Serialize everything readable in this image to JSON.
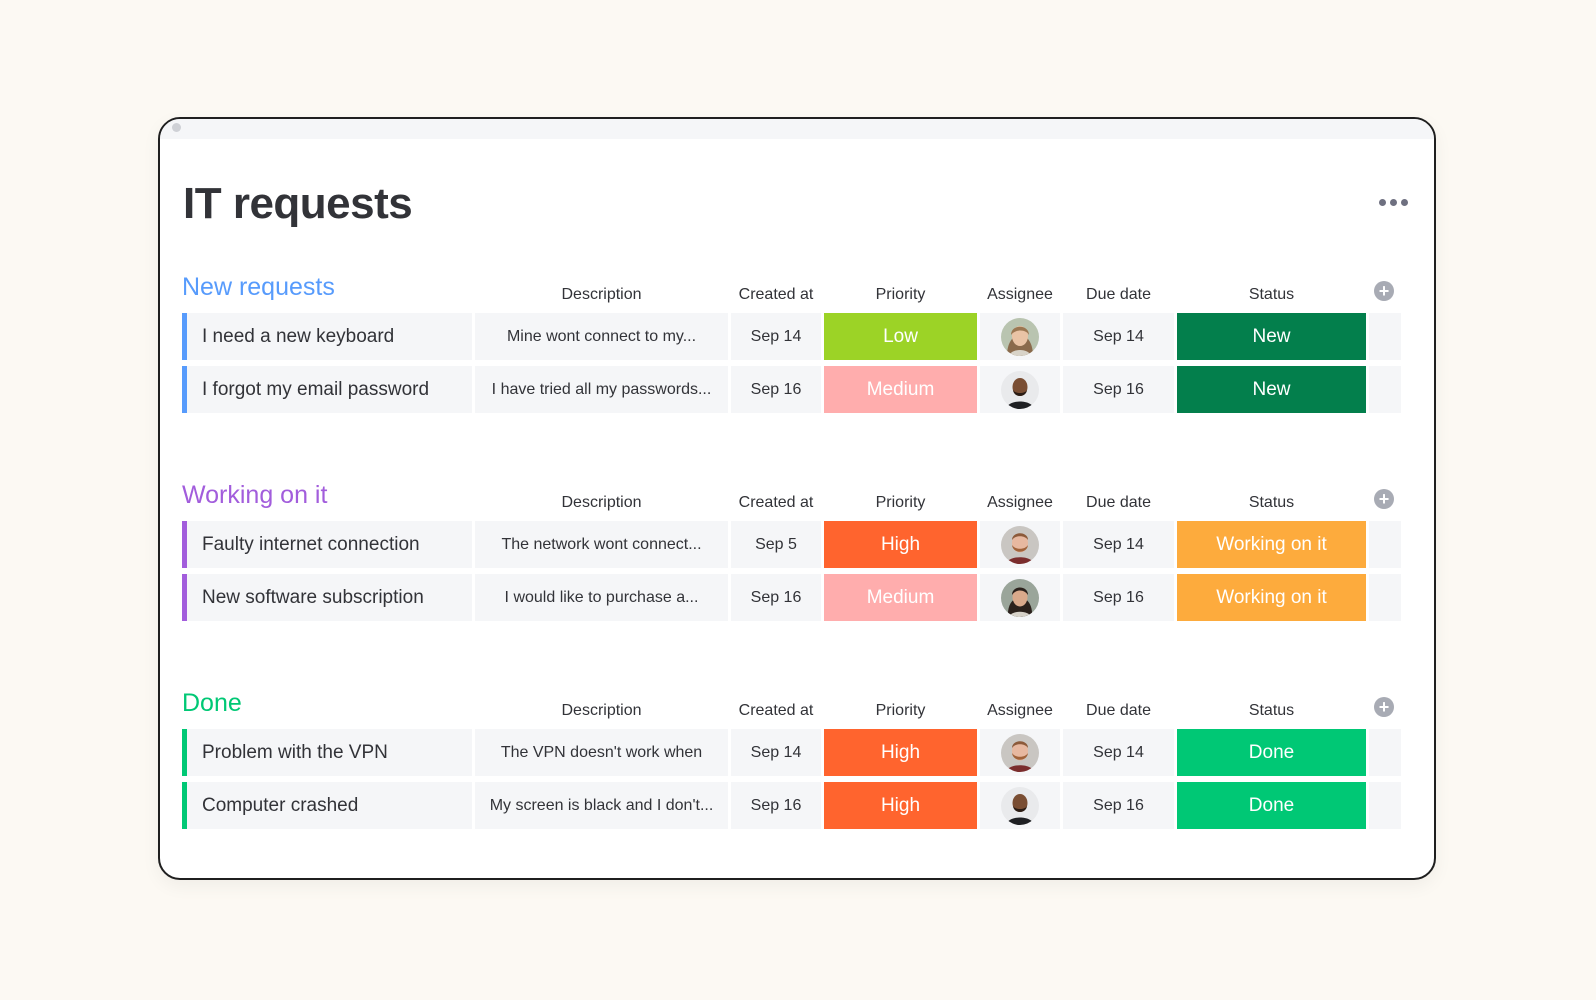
{
  "board": {
    "title": "IT requests"
  },
  "columns": {
    "description": "Description",
    "created_at": "Created at",
    "priority": "Priority",
    "assignee": "Assignee",
    "due_date": "Due date",
    "status": "Status"
  },
  "colors": {
    "page_background": "#fcf9f3",
    "cell_background": "#f5f6f8",
    "priority_low": "#9cd326",
    "priority_medium": "#ffadad",
    "priority_high": "#ff642e",
    "status_new": "#037f4c",
    "status_working": "#fdab3d",
    "status_done": "#00c875"
  },
  "groups": [
    {
      "title": "New requests",
      "color": "#579bfc",
      "items": [
        {
          "name": "I need a new keyboard",
          "description": "Mine wont connect to my...",
          "created_at": "Sep 14",
          "priority": "Low",
          "priority_color": "#9cd326",
          "assignee_avatar": "woman-light-hair-avatar",
          "due_date": "Sep 14",
          "status": "New",
          "status_color": "#037f4c"
        },
        {
          "name": "I forgot my email password",
          "description": "I have tried all my passwords...",
          "created_at": "Sep 16",
          "priority": "Medium",
          "priority_color": "#ffadad",
          "assignee_avatar": "man-bald-beard-avatar",
          "due_date": "Sep 16",
          "status": "New",
          "status_color": "#037f4c"
        }
      ]
    },
    {
      "title": "Working on it",
      "color": "#a25ddc",
      "items": [
        {
          "name": "Faulty internet connection",
          "description": "The network wont connect...",
          "created_at": "Sep 5",
          "priority": "High",
          "priority_color": "#ff642e",
          "assignee_avatar": "man-red-beard-avatar",
          "due_date": "Sep 14",
          "status": "Working on it",
          "status_color": "#fdab3d"
        },
        {
          "name": "New software subscription",
          "description": "I would like to purchase a...",
          "created_at": "Sep 16",
          "priority": "Medium",
          "priority_color": "#ffadad",
          "assignee_avatar": "woman-dark-hair-avatar",
          "due_date": "Sep 16",
          "status": "Working on it",
          "status_color": "#fdab3d"
        }
      ]
    },
    {
      "title": "Done",
      "color": "#00c875",
      "items": [
        {
          "name": "Problem with the VPN",
          "description": "The VPN doesn't work when",
          "created_at": "Sep 14",
          "priority": "High",
          "priority_color": "#ff642e",
          "assignee_avatar": "man-red-beard-avatar",
          "due_date": "Sep 14",
          "status": "Done",
          "status_color": "#00c875"
        },
        {
          "name": "Computer crashed",
          "description": "My screen is black and I don't...",
          "created_at": "Sep 16",
          "priority": "High",
          "priority_color": "#ff642e",
          "assignee_avatar": "man-bald-beard-avatar",
          "due_date": "Sep 16",
          "status": "Done",
          "status_color": "#00c875"
        }
      ]
    }
  ]
}
